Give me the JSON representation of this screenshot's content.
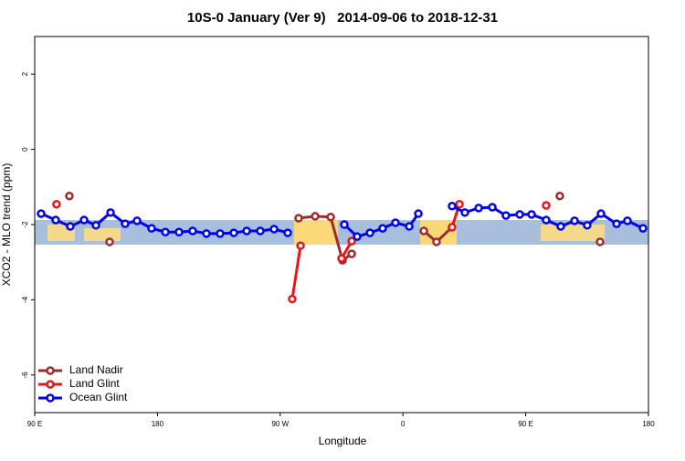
{
  "chart_data": {
    "type": "line",
    "title": "10S-0 January (Ver 9)   2014-09-06 to 2018-12-31",
    "xlabel": "Longitude",
    "ylabel": "XCO2 - MLO trend (ppm)",
    "xlim": [
      90,
      540
    ],
    "xticks": [
      {
        "value": 90,
        "label": "90 E"
      },
      180,
      {
        "value": 270,
        "label": "90 W"
      },
      {
        "value": 360,
        "label": "0"
      },
      {
        "value": 450,
        "label": "90 E"
      },
      180
    ],
    "ylim": [
      -7,
      3
    ],
    "yticks": [
      -6,
      -4,
      -2,
      0,
      2
    ],
    "legend": "bottom-left",
    "series": [
      {
        "name": "Land Nadir",
        "color": "#9b2d2d",
        "x": [
          115.4,
          null,
          144.9,
          null,
          283.5,
          295.6,
          307,
          315.7,
          322.4,
          null,
          375.3,
          384.6,
          396,
          null,
          475,
          null,
          504.5
        ],
        "values": [
          -1.24,
          null,
          -2.46,
          null,
          -1.83,
          -1.78,
          -1.8,
          -2.95,
          -2.78,
          null,
          -2.17,
          -2.46,
          -2.07,
          null,
          -1.24,
          null,
          -2.46
        ]
      },
      {
        "name": "Land Glint",
        "color": "#e8151b",
        "x": [
          106,
          null,
          278.8,
          284.9,
          null,
          315,
          322.4,
          null,
          396,
          401.4,
          null,
          465
        ],
        "values": [
          -1.46,
          null,
          -3.98,
          -2.56,
          null,
          -2.9,
          -2.44,
          null,
          -2.07,
          -1.46,
          null,
          -1.49
        ]
      },
      {
        "name": "Ocean Glint",
        "color": "#0000ee",
        "x": [
          94.7,
          105.4,
          116.1,
          126.2,
          134.9,
          145.6,
          156.3,
          165,
          175.7,
          185.8,
          195.8,
          205.8,
          215.9,
          225.9,
          236,
          245.4,
          255.4,
          265.5,
          275.5,
          null,
          317,
          326.4,
          335.8,
          345.1,
          354.5,
          364.6,
          371.3,
          null,
          396,
          405.4,
          415.5,
          425.5,
          435.5,
          445.6,
          454.3,
          465,
          475.7,
          485.8,
          495.1,
          505.2,
          516.6,
          524.6,
          536
        ],
        "values": [
          -1.71,
          -1.88,
          -2.05,
          -1.88,
          -2.02,
          -1.68,
          -1.98,
          -1.9,
          -2.1,
          -2.2,
          -2.2,
          -2.17,
          -2.24,
          -2.24,
          -2.22,
          -2.17,
          -2.17,
          -2.12,
          -2.22,
          null,
          -2.0,
          -2.32,
          -2.22,
          -2.1,
          -1.95,
          -2.05,
          -1.71,
          null,
          -1.51,
          -1.68,
          -1.56,
          -1.54,
          -1.76,
          -1.73,
          -1.73,
          -1.88,
          -2.05,
          -1.9,
          -2.02,
          -1.71,
          -1.98,
          -1.9,
          -2.1
        ]
      }
    ]
  }
}
